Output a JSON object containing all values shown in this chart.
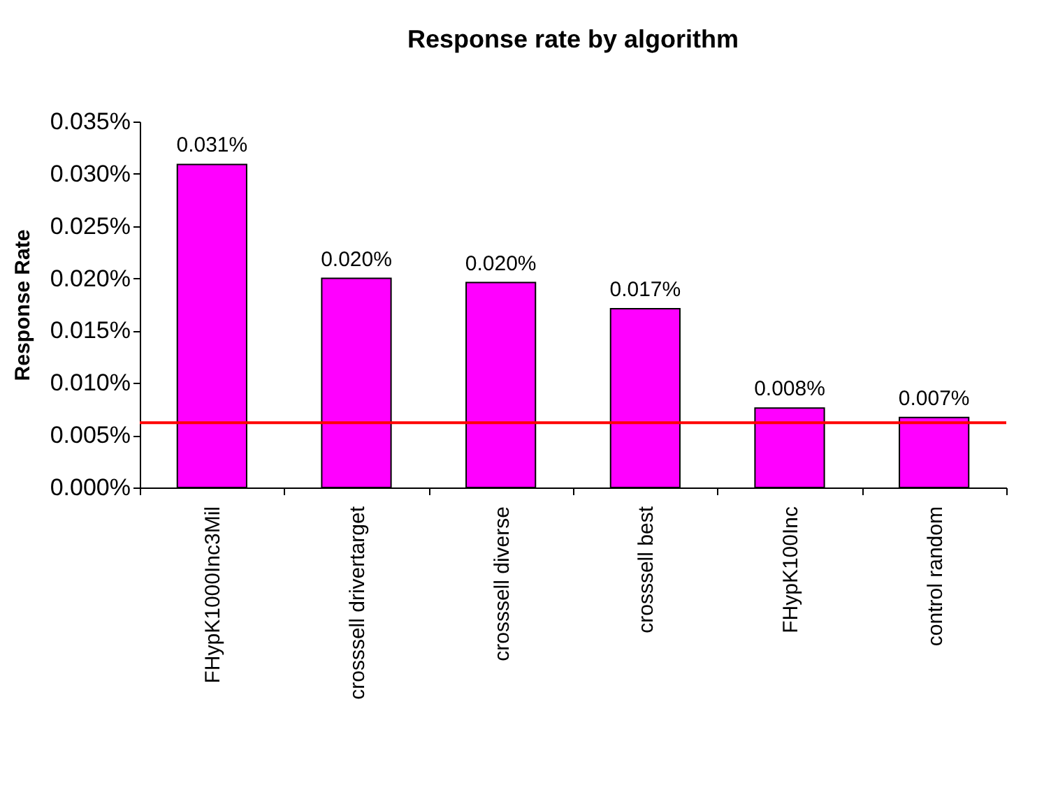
{
  "chart_data": {
    "type": "bar",
    "title": "Response rate by algorithm",
    "ylabel": "Response Rate",
    "categories": [
      "FHypK1000Inc3Mil",
      "crosssell drivertarget",
      "crosssell diverse",
      "crosssell best",
      "FHypK100Inc",
      "control random"
    ],
    "values": [
      0.0309,
      0.02,
      0.0196,
      0.0171,
      0.0076,
      0.0067
    ],
    "value_labels": [
      "0.031%",
      "0.020%",
      "0.020%",
      "0.017%",
      "0.008%",
      "0.007%"
    ],
    "color": "#ff00ff",
    "ylim": [
      0,
      0.035
    ],
    "yticks": [
      {
        "value": 0,
        "label": "0.000%"
      },
      {
        "value": 0.005,
        "label": "0.005%"
      },
      {
        "value": 0.01,
        "label": "0.010%"
      },
      {
        "value": 0.015,
        "label": "0.015%"
      },
      {
        "value": 0.02,
        "label": "0.020%"
      },
      {
        "value": 0.025,
        "label": "0.025%"
      },
      {
        "value": 0.03,
        "label": "0.030%"
      },
      {
        "value": 0.035,
        "label": "0.035%"
      }
    ],
    "ref_lines": [
      {
        "axis": "y",
        "value": 0.0062,
        "color": "#ff0000"
      }
    ],
    "grid": false
  }
}
